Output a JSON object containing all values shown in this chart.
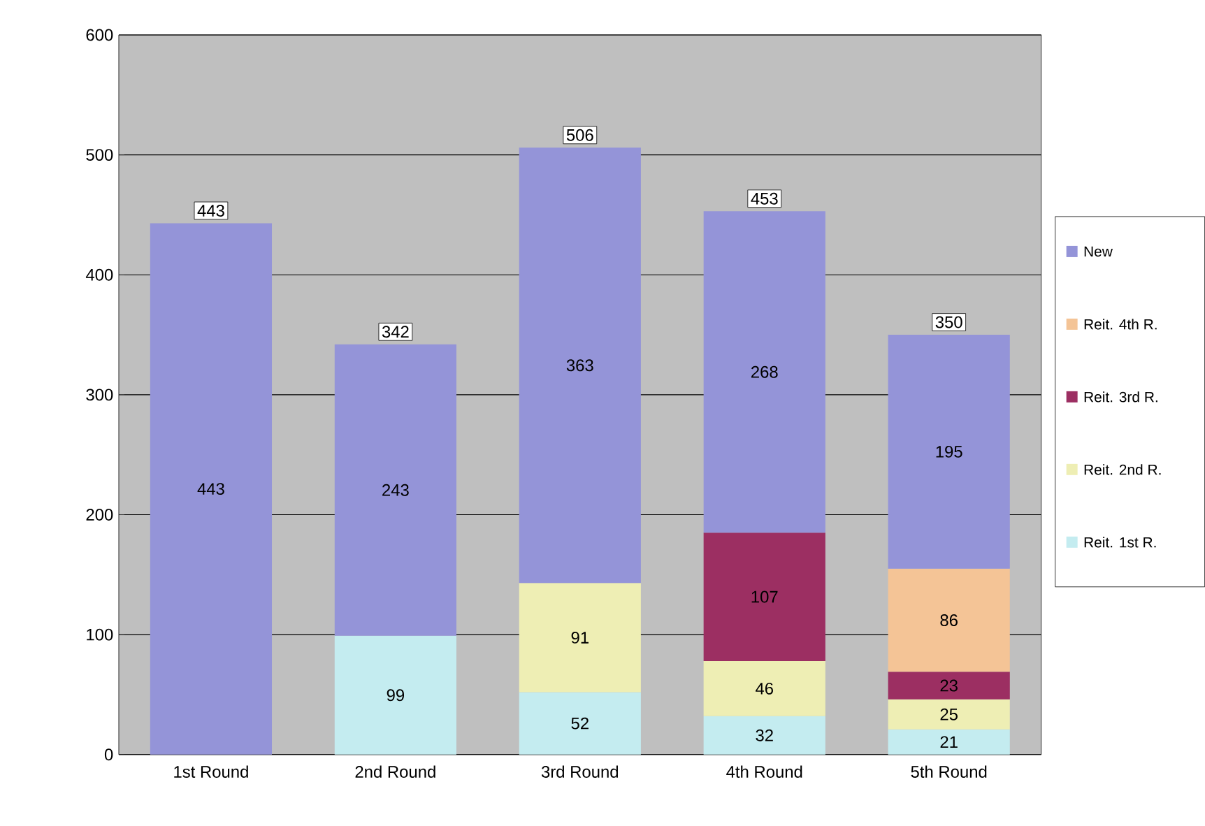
{
  "chart_data": {
    "type": "bar",
    "stacked": true,
    "categories": [
      "1st Round",
      "2nd Round",
      "3rd Round",
      "4th Round",
      "5th Round"
    ],
    "series": [
      {
        "name": "Reit. 1st R.",
        "color": "#c4ecf0",
        "values": [
          null,
          99,
          52,
          32,
          21
        ]
      },
      {
        "name": "Reit. 2nd R.",
        "color": "#eeeeb4",
        "values": [
          null,
          null,
          91,
          46,
          25
        ]
      },
      {
        "name": "Reit. 3rd R.",
        "color": "#9c2f62",
        "values": [
          null,
          null,
          null,
          107,
          23
        ]
      },
      {
        "name": "Reit. 4th R.",
        "color": "#f4c496",
        "values": [
          null,
          null,
          null,
          null,
          86
        ]
      },
      {
        "name": "New",
        "color": "#9494d8",
        "values": [
          443,
          243,
          363,
          268,
          195
        ]
      }
    ],
    "totals": [
      "443",
      "342",
      "506",
      "453",
      "350"
    ],
    "data_labels": true,
    "ylim": [
      0,
      600
    ],
    "yticks": [
      0,
      100,
      200,
      300,
      400,
      500,
      600
    ],
    "grid": "y",
    "legend": "right"
  }
}
